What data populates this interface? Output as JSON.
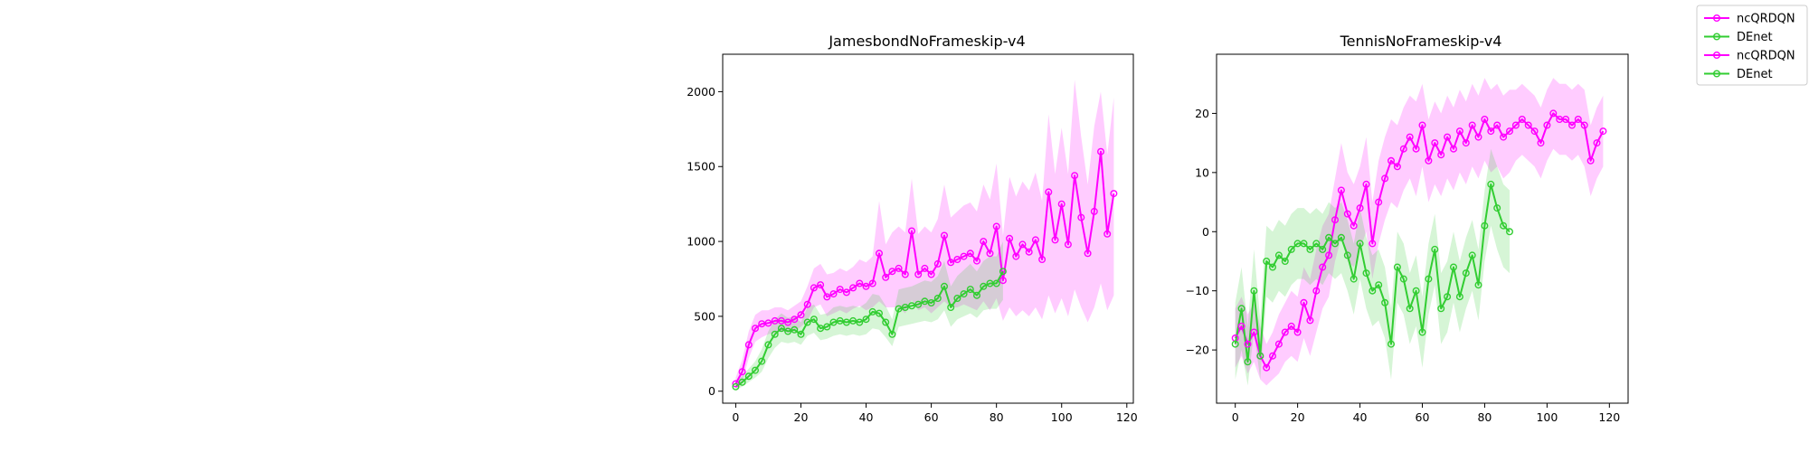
{
  "legend": {
    "entries": [
      {
        "label": "ncQRDQN",
        "color": "#ff00ff"
      },
      {
        "label": "DEnet",
        "color": "#32cd32"
      },
      {
        "label": "ncQRDQN",
        "color": "#ff00ff"
      },
      {
        "label": "DEnet",
        "color": "#32cd32"
      }
    ],
    "placement": "top-right"
  },
  "chart_data": [
    {
      "type": "line",
      "title": "JamesbondNoFrameskip-v4",
      "xlabel": "",
      "ylabel": "",
      "xlim": [
        -4,
        122
      ],
      "ylim": [
        -80,
        2250
      ],
      "xticks": [
        0,
        20,
        40,
        60,
        80,
        100,
        120
      ],
      "yticks": [
        0,
        500,
        1000,
        1500,
        2000
      ],
      "grid": false,
      "series": [
        {
          "name": "ncQRDQN",
          "color": "#ff00ff",
          "x": [
            0,
            2,
            4,
            6,
            8,
            10,
            12,
            14,
            16,
            18,
            20,
            22,
            24,
            26,
            28,
            30,
            32,
            34,
            36,
            38,
            40,
            42,
            44,
            46,
            48,
            50,
            52,
            54,
            56,
            58,
            60,
            62,
            64,
            66,
            68,
            70,
            72,
            74,
            76,
            78,
            80,
            82,
            84,
            86,
            88,
            90,
            92,
            94,
            96,
            98,
            100,
            102,
            104,
            106,
            108,
            110,
            112,
            114,
            116
          ],
          "y": [
            50,
            130,
            310,
            420,
            450,
            455,
            470,
            470,
            460,
            480,
            510,
            580,
            690,
            710,
            630,
            650,
            680,
            660,
            690,
            720,
            700,
            720,
            920,
            760,
            800,
            820,
            780,
            1070,
            780,
            820,
            780,
            850,
            1040,
            860,
            880,
            900,
            920,
            870,
            1000,
            920,
            1100,
            740,
            1020,
            900,
            980,
            930,
            1010,
            880,
            1330,
            1010,
            1250,
            980,
            1440,
            1160,
            920,
            1200,
            1600,
            1050,
            1320
          ],
          "band_low": [
            20,
            60,
            220,
            330,
            360,
            380,
            390,
            400,
            390,
            400,
            430,
            470,
            560,
            580,
            500,
            520,
            540,
            520,
            550,
            570,
            540,
            560,
            600,
            560,
            560,
            560,
            520,
            610,
            540,
            560,
            520,
            560,
            600,
            560,
            560,
            580,
            560,
            540,
            600,
            540,
            620,
            470,
            560,
            500,
            540,
            500,
            560,
            480,
            640,
            520,
            620,
            500,
            680,
            560,
            460,
            560,
            720,
            540,
            640
          ],
          "band_high": [
            90,
            210,
            400,
            510,
            540,
            540,
            560,
            560,
            540,
            570,
            600,
            700,
            820,
            850,
            780,
            790,
            820,
            800,
            830,
            880,
            860,
            900,
            1270,
            980,
            1060,
            1100,
            1060,
            1420,
            1050,
            1100,
            1060,
            1150,
            1380,
            1160,
            1200,
            1240,
            1260,
            1200,
            1380,
            1280,
            1520,
            1040,
            1430,
            1300,
            1400,
            1340,
            1460,
            1270,
            1850,
            1450,
            1760,
            1450,
            2080,
            1700,
            1380,
            1770,
            2000,
            1580,
            1960
          ]
        },
        {
          "name": "DEnet",
          "color": "#32cd32",
          "x": [
            0,
            2,
            4,
            6,
            8,
            10,
            12,
            14,
            16,
            18,
            20,
            22,
            24,
            26,
            28,
            30,
            32,
            34,
            36,
            38,
            40,
            42,
            44,
            46,
            48,
            50,
            52,
            54,
            56,
            58,
            60,
            62,
            64,
            66,
            68,
            70,
            72,
            74,
            76,
            78,
            80,
            82
          ],
          "y": [
            30,
            60,
            100,
            140,
            200,
            310,
            380,
            420,
            400,
            410,
            380,
            460,
            480,
            420,
            430,
            460,
            470,
            460,
            470,
            460,
            480,
            530,
            520,
            460,
            380,
            550,
            560,
            570,
            580,
            600,
            590,
            620,
            700,
            560,
            620,
            650,
            680,
            640,
            700,
            720,
            720,
            800
          ],
          "band_low": [
            10,
            30,
            60,
            90,
            130,
            220,
            290,
            330,
            320,
            330,
            310,
            370,
            390,
            340,
            350,
            370,
            380,
            370,
            380,
            370,
            380,
            420,
            410,
            360,
            300,
            430,
            440,
            450,
            460,
            470,
            460,
            480,
            540,
            430,
            480,
            500,
            520,
            490,
            540,
            550,
            550,
            610
          ],
          "band_high": [
            60,
            100,
            150,
            200,
            280,
            400,
            480,
            520,
            490,
            500,
            460,
            560,
            580,
            510,
            520,
            560,
            570,
            560,
            570,
            560,
            590,
            650,
            640,
            570,
            480,
            680,
            690,
            700,
            720,
            740,
            730,
            770,
            870,
            700,
            770,
            810,
            850,
            800,
            870,
            900,
            900,
            1000
          ]
        }
      ]
    },
    {
      "type": "line",
      "title": "TennisNoFrameskip-v4",
      "xlabel": "",
      "ylabel": "",
      "xlim": [
        -6,
        126
      ],
      "ylim": [
        -29,
        30
      ],
      "xticks": [
        0,
        20,
        40,
        60,
        80,
        100,
        120
      ],
      "yticks": [
        -20,
        -10,
        0,
        10,
        20
      ],
      "grid": false,
      "series": [
        {
          "name": "ncQRDQN",
          "color": "#ff00ff",
          "x": [
            0,
            2,
            4,
            6,
            8,
            10,
            12,
            14,
            16,
            18,
            20,
            22,
            24,
            26,
            28,
            30,
            32,
            34,
            36,
            38,
            40,
            42,
            44,
            46,
            48,
            50,
            52,
            54,
            56,
            58,
            60,
            62,
            64,
            66,
            68,
            70,
            72,
            74,
            76,
            78,
            80,
            82,
            84,
            86,
            88,
            90,
            92,
            94,
            96,
            98,
            100,
            102,
            104,
            106,
            108,
            110,
            112,
            114,
            116,
            118
          ],
          "y": [
            -18,
            -16,
            -19,
            -17,
            -21,
            -23,
            -21,
            -19,
            -17,
            -16,
            -17,
            -12,
            -15,
            -10,
            -6,
            -4,
            2,
            7,
            3,
            1,
            4,
            8,
            -2,
            5,
            9,
            12,
            11,
            14,
            16,
            14,
            18,
            12,
            15,
            13,
            16,
            14,
            17,
            15,
            18,
            16,
            19,
            17,
            18,
            16,
            17,
            18,
            19,
            18,
            17,
            15,
            18,
            20,
            19,
            19,
            18,
            19,
            18,
            12,
            15,
            17
          ],
          "band_low": [
            -23,
            -21,
            -24,
            -22,
            -25,
            -26,
            -25,
            -24,
            -22,
            -21,
            -22,
            -18,
            -21,
            -17,
            -13,
            -11,
            -5,
            -1,
            -5,
            -6,
            -3,
            0,
            -8,
            -2,
            2,
            5,
            4,
            7,
            9,
            6,
            11,
            5,
            8,
            6,
            9,
            7,
            10,
            8,
            11,
            9,
            12,
            10,
            11,
            9,
            10,
            12,
            13,
            12,
            11,
            9,
            12,
            14,
            13,
            13,
            12,
            13,
            11,
            6,
            9,
            11
          ],
          "band_high": [
            -13,
            -11,
            -14,
            -12,
            -16,
            -19,
            -17,
            -14,
            -12,
            -10,
            -11,
            -6,
            -8,
            -3,
            1,
            3,
            9,
            15,
            10,
            8,
            11,
            16,
            5,
            12,
            16,
            19,
            18,
            21,
            23,
            22,
            25,
            19,
            22,
            20,
            23,
            21,
            24,
            22,
            25,
            23,
            26,
            24,
            25,
            23,
            24,
            24,
            25,
            24,
            23,
            21,
            24,
            26,
            25,
            25,
            24,
            25,
            24,
            18,
            21,
            23
          ]
        },
        {
          "name": "DEnet",
          "color": "#32cd32",
          "x": [
            0,
            2,
            4,
            6,
            8,
            10,
            12,
            14,
            16,
            18,
            20,
            22,
            24,
            26,
            28,
            30,
            32,
            34,
            36,
            38,
            40,
            42,
            44,
            46,
            48,
            50,
            52,
            54,
            56,
            58,
            60,
            62,
            64,
            66,
            68,
            70,
            72,
            74,
            76,
            78,
            80,
            82,
            84,
            86,
            88
          ],
          "y": [
            -19,
            -13,
            -22,
            -10,
            -21,
            -5,
            -6,
            -4,
            -5,
            -3,
            -2,
            -2,
            -3,
            -2,
            -3,
            -1,
            -2,
            -1,
            -4,
            -8,
            -2,
            -7,
            -10,
            -9,
            -12,
            -19,
            -6,
            -8,
            -13,
            -10,
            -17,
            -8,
            -3,
            -13,
            -11,
            -6,
            -11,
            -7,
            -4,
            -9,
            1,
            8,
            4,
            1,
            0
          ],
          "band_low": [
            -25,
            -20,
            -26,
            -17,
            -25,
            -11,
            -12,
            -10,
            -11,
            -9,
            -8,
            -8,
            -9,
            -8,
            -9,
            -7,
            -8,
            -7,
            -10,
            -14,
            -8,
            -13,
            -16,
            -15,
            -18,
            -25,
            -12,
            -14,
            -19,
            -16,
            -23,
            -14,
            -9,
            -19,
            -17,
            -12,
            -17,
            -13,
            -10,
            -15,
            -5,
            1,
            -3,
            -6,
            -7
          ],
          "band_high": [
            -12,
            -6,
            -16,
            -3,
            -15,
            1,
            0,
            2,
            1,
            3,
            4,
            4,
            3,
            4,
            3,
            5,
            4,
            5,
            2,
            -2,
            4,
            -1,
            -4,
            -3,
            -6,
            -13,
            0,
            -2,
            -7,
            -4,
            -11,
            -2,
            3,
            -7,
            -5,
            0,
            -5,
            -1,
            2,
            -3,
            7,
            14,
            11,
            8,
            7
          ]
        }
      ]
    }
  ]
}
